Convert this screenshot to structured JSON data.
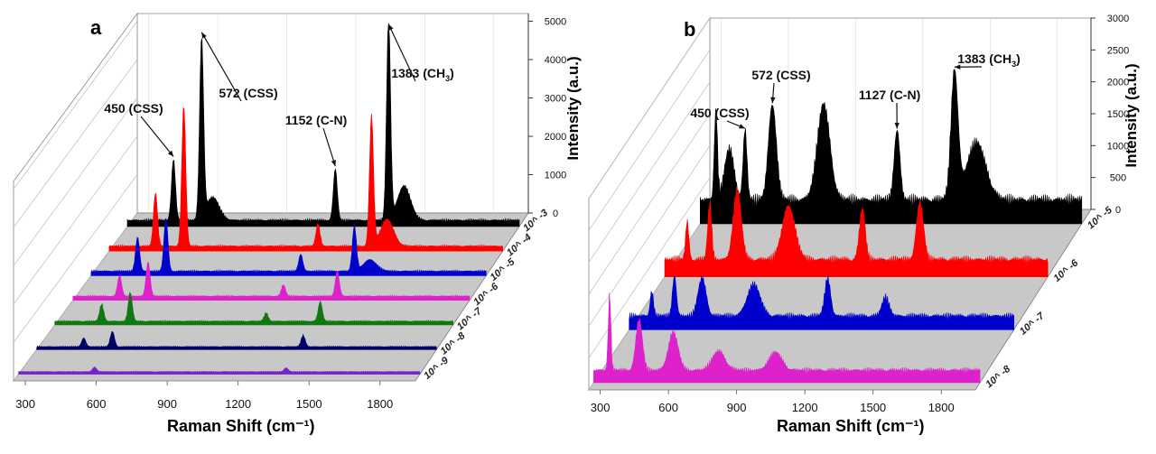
{
  "chart_data": [
    {
      "type": "line",
      "style": "3d-waterfall",
      "panel_label": "a",
      "xlabel": "Raman Shift (cm⁻¹)",
      "zlabel": "Intensity (a.u.)",
      "x_ticks": [
        300,
        600,
        900,
        1200,
        1500,
        1800
      ],
      "xlim": [
        250,
        1950
      ],
      "z_ticks": [
        0,
        1000,
        2000,
        3000,
        4000,
        5000
      ],
      "zlim": [
        0,
        5200
      ],
      "series": [
        {
          "name": "10^ -3",
          "color": "#000000",
          "baseline": 150,
          "peaks": [
            [
              450,
              1600,
              12
            ],
            [
              572,
              4700,
              12
            ],
            [
              1152,
              1350,
              12
            ],
            [
              1383,
              5300,
              12
            ],
            [
              1450,
              900,
              40
            ],
            [
              620,
              600,
              40
            ]
          ]
        },
        {
          "name": "10^ -4",
          "color": "#ff0000",
          "baseline": 120,
          "peaks": [
            [
              450,
              1400,
              12
            ],
            [
              572,
              3700,
              12
            ],
            [
              1152,
              600,
              12
            ],
            [
              1383,
              3400,
              12
            ],
            [
              1450,
              700,
              40
            ]
          ]
        },
        {
          "name": "10^ -5",
          "color": "#0000cc",
          "baseline": 110,
          "peaks": [
            [
              450,
              900,
              12
            ],
            [
              572,
              1400,
              12
            ],
            [
              1152,
              450,
              12
            ],
            [
              1383,
              1200,
              12
            ],
            [
              1450,
              300,
              40
            ]
          ]
        },
        {
          "name": "10^ -6",
          "color": "#dd22cc",
          "baseline": 100,
          "peaks": [
            [
              450,
              550,
              12
            ],
            [
              572,
              900,
              12
            ],
            [
              1152,
              300,
              12
            ],
            [
              1383,
              650,
              12
            ]
          ]
        },
        {
          "name": "10^ -7",
          "color": "#117711",
          "baseline": 90,
          "peaks": [
            [
              450,
              450,
              12
            ],
            [
              572,
              750,
              12
            ],
            [
              1152,
              220,
              12
            ],
            [
              1383,
              520,
              12
            ]
          ]
        },
        {
          "name": "10^ -8",
          "color": "#000066",
          "baseline": 70,
          "peaks": [
            [
              450,
              230,
              12
            ],
            [
              572,
              400,
              12
            ],
            [
              1383,
              300,
              12
            ]
          ]
        },
        {
          "name": "10^ -9",
          "color": "#7722cc",
          "baseline": 60,
          "peaks": [
            [
              572,
              120,
              12
            ],
            [
              1383,
              100,
              12
            ]
          ]
        }
      ],
      "annotations": [
        {
          "text": "450 (CSS)",
          "x": 450
        },
        {
          "text": "572 (CSS)",
          "x": 572
        },
        {
          "text": "1152 (C-N)",
          "x": 1152
        },
        {
          "text": "1383 (CH",
          "sub": "3",
          "suffix": ")",
          "x": 1383
        }
      ]
    },
    {
      "type": "line",
      "style": "3d-waterfall",
      "panel_label": "b",
      "xlabel": "Raman Shift (cm⁻¹)",
      "zlabel": "Intensity (a.u.)",
      "x_ticks": [
        300,
        600,
        900,
        1200,
        1500,
        1800
      ],
      "xlim": [
        250,
        1950
      ],
      "z_ticks": [
        0,
        500,
        1000,
        1500,
        2000,
        2500,
        3000
      ],
      "zlim": [
        0,
        3000
      ],
      "series": [
        {
          "name": "10^ -5",
          "color": "#000000",
          "baseline": 350,
          "peaks": [
            [
              320,
              1400,
              10
            ],
            [
              380,
              800,
              30
            ],
            [
              450,
              1100,
              12
            ],
            [
              572,
              1500,
              25
            ],
            [
              800,
              1500,
              40
            ],
            [
              1127,
              1100,
              18
            ],
            [
              1383,
              2000,
              22
            ],
            [
              1480,
              900,
              60
            ]
          ]
        },
        {
          "name": "10^ -6",
          "color": "#ff0000",
          "baseline": 250,
          "peaks": [
            [
              350,
              600,
              10
            ],
            [
              450,
              900,
              12
            ],
            [
              572,
              1100,
              25
            ],
            [
              800,
              850,
              40
            ],
            [
              1127,
              800,
              18
            ],
            [
              1383,
              900,
              22
            ]
          ]
        },
        {
          "name": "10^ -7",
          "color": "#0000cc",
          "baseline": 200,
          "peaks": [
            [
              350,
              400,
              10
            ],
            [
              450,
              650,
              12
            ],
            [
              572,
              600,
              25
            ],
            [
              800,
              500,
              40
            ],
            [
              1127,
              600,
              18
            ],
            [
              1383,
              300,
              22
            ]
          ]
        },
        {
          "name": "10^ -8",
          "color": "#dd22cc",
          "baseline": 180,
          "peaks": [
            [
              320,
              1200,
              8
            ],
            [
              450,
              800,
              20
            ],
            [
              600,
              600,
              30
            ],
            [
              800,
              300,
              40
            ],
            [
              1050,
              280,
              40
            ]
          ]
        }
      ],
      "annotations": [
        {
          "text": "450 (CSS)",
          "x": 450
        },
        {
          "text": "572 (CSS)",
          "x": 572
        },
        {
          "text": "1127 (C-N)",
          "x": 1127
        },
        {
          "text": "1383 (CH",
          "sub": "3",
          "suffix": ")",
          "x": 1383
        }
      ]
    }
  ]
}
